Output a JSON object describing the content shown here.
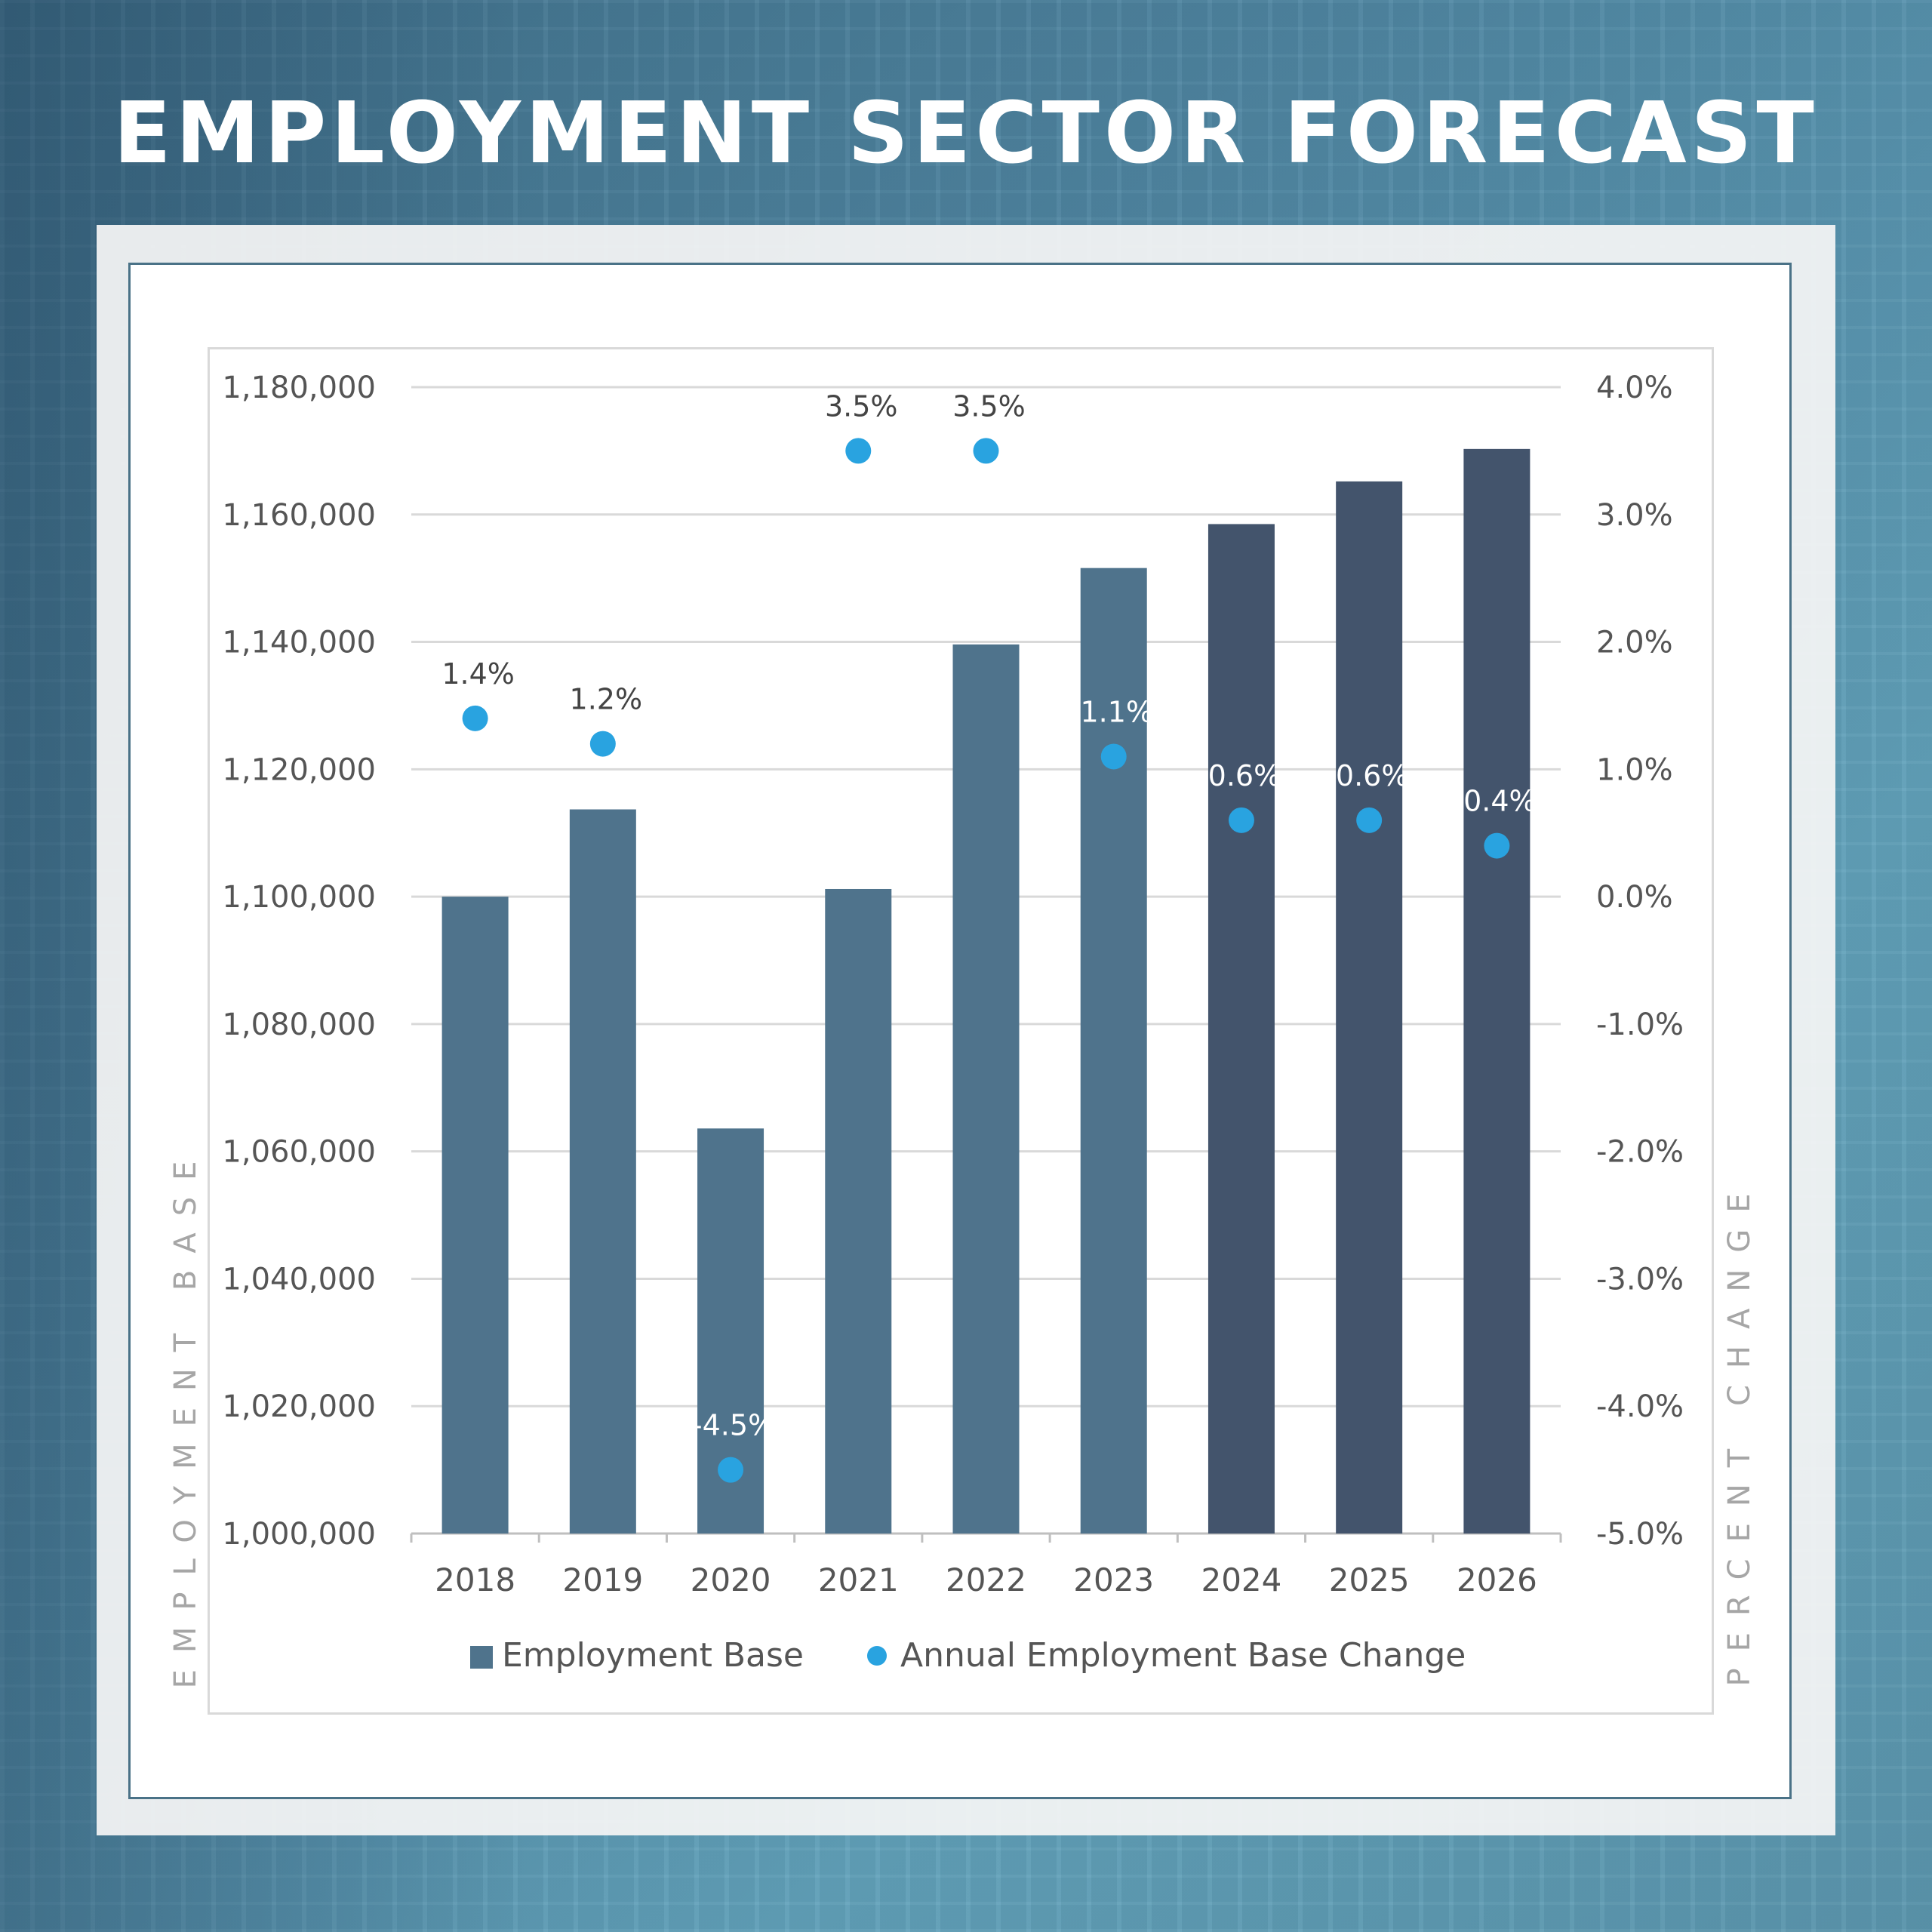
{
  "page": {
    "title": "EMPLOYMENT SECTOR FORECAST"
  },
  "chart_data": {
    "type": "bar",
    "combo": "bar + scatter on secondary axis",
    "categories": [
      "2018",
      "2019",
      "2020",
      "2021",
      "2022",
      "2023",
      "2024",
      "2025",
      "2026"
    ],
    "series": [
      {
        "name": "Employment Base",
        "type": "bar",
        "axis": "left",
        "values": [
          1100000,
          1113700,
          1063600,
          1101200,
          1139600,
          1151600,
          1158500,
          1165200,
          1170300
        ],
        "colors": [
          "#4f738c",
          "#4f738c",
          "#4f738c",
          "#4f738c",
          "#4f738c",
          "#4f738c",
          "#43546c",
          "#43546c",
          "#43546c"
        ]
      },
      {
        "name": "Annual Employment Base Change",
        "type": "scatter",
        "axis": "right",
        "values": [
          1.4,
          1.2,
          -4.5,
          3.5,
          3.5,
          1.1,
          0.6,
          0.6,
          0.4
        ],
        "labels": [
          "1.4%",
          "1.2%",
          "-4.5%",
          "3.5%",
          "3.5%",
          "1.1%",
          "0.6%",
          "0.6%",
          "0.4%"
        ],
        "color": "#29a3e0"
      }
    ],
    "ylabel": "EMPLOYMENT BASE",
    "y2label": "PERCENT CHANGE",
    "ylim": [
      1000000,
      1180000
    ],
    "y2lim": [
      -5.0,
      4.0
    ],
    "yticks": [
      "1,000,000",
      "1,020,000",
      "1,040,000",
      "1,060,000",
      "1,080,000",
      "1,100,000",
      "1,120,000",
      "1,140,000",
      "1,160,000",
      "1,180,000"
    ],
    "y2ticks": [
      "-5.0%",
      "-4.0%",
      "-3.0%",
      "-2.0%",
      "-1.0%",
      "0.0%",
      "1.0%",
      "2.0%",
      "3.0%",
      "4.0%"
    ],
    "grid": true,
    "legend_position": "bottom"
  }
}
